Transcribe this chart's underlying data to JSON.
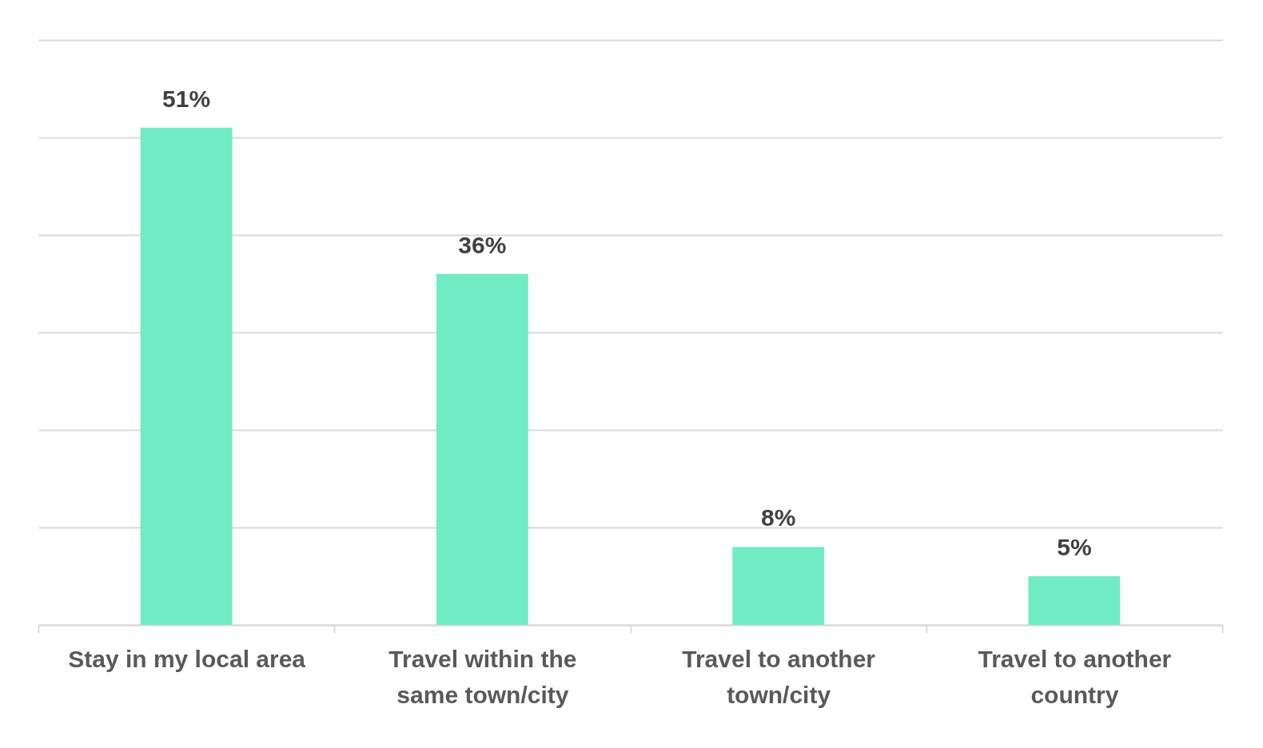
{
  "chart_data": {
    "type": "bar",
    "categories": [
      "Stay in my local area",
      "Travel within the same town/city",
      "Travel to another town/city",
      "Travel to another country"
    ],
    "values": [
      51,
      36,
      8,
      5
    ],
    "value_labels": [
      "51%",
      "36%",
      "8%",
      "5%"
    ],
    "color": "#71ebc3",
    "ylim": [
      0,
      60
    ],
    "yticks": [
      {
        "value": 0,
        "label": null
      },
      {
        "value": 10,
        "label": null
      },
      {
        "value": 20,
        "label": null
      },
      {
        "value": 30,
        "label": null
      },
      {
        "value": 40,
        "label": null
      },
      {
        "value": 50,
        "label": null
      },
      {
        "value": 60,
        "label": null
      }
    ],
    "grid": "y",
    "tick_labels": "x"
  }
}
